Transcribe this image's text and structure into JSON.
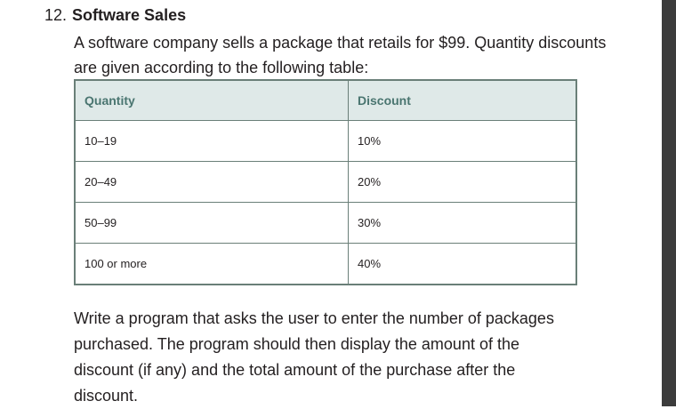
{
  "exercise": {
    "number": "12.",
    "title": "Software Sales",
    "intro": "A software company sells a package that retails for $99. Quantity discounts are given according to the following table:",
    "table": {
      "headers": [
        "Quantity",
        "Discount"
      ],
      "rows": [
        [
          "10–19",
          "10%"
        ],
        [
          "20–49",
          "20%"
        ],
        [
          "50–99",
          "30%"
        ],
        [
          "100 or more",
          "40%"
        ]
      ]
    },
    "prompt": "Write a program that asks the user to enter the number of packages purchased. The program should then display the amount of the discount (if any) and the total amount of the purchase after the discount."
  }
}
